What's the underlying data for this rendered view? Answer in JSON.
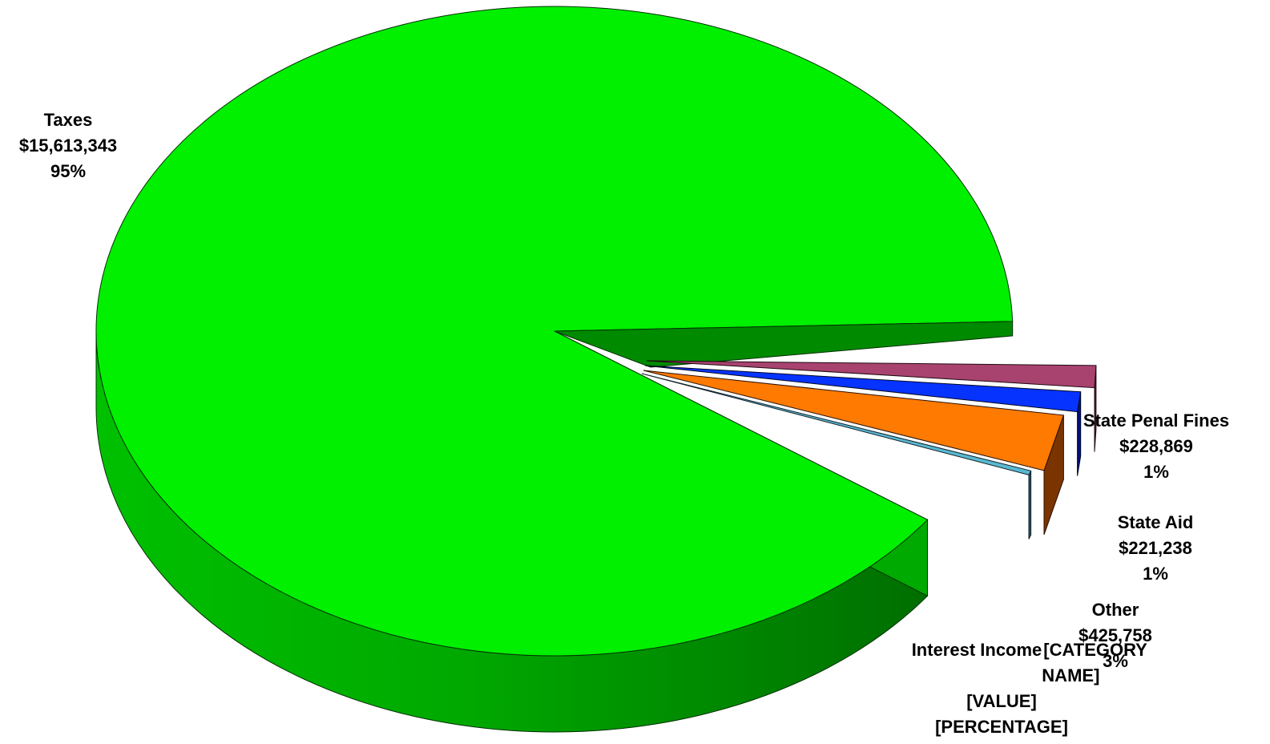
{
  "chart_data": {
    "type": "pie",
    "style": "3d-exploded",
    "slices": [
      {
        "name": "Taxes",
        "value": 15613343,
        "value_label": "$15,613,343",
        "percent_label": "95%",
        "color": "#00f000",
        "side_color": "#00b000"
      },
      {
        "name": "State Penal Fines",
        "value": 228869,
        "value_label": "$228,869",
        "percent_label": "1%",
        "color": "#a8436f",
        "side_color": "#5a1f3a"
      },
      {
        "name": "State Aid",
        "value": 221238,
        "value_label": "$221,238",
        "percent_label": "1%",
        "color": "#0733ff",
        "side_color": "#001080"
      },
      {
        "name": "Other",
        "value": 425758,
        "value_label": "$425,758",
        "percent_label": "3%",
        "color": "#ff7a00",
        "side_color": "#7a3400"
      },
      {
        "name": "Interest Income",
        "value": 0,
        "value_label": "[VALUE]",
        "percent_label": "[PERCENTAGE]",
        "category_placeholder": "[CATEGORY NAME]",
        "color": "#5ab8d0",
        "side_color": "#2a5060"
      }
    ]
  }
}
